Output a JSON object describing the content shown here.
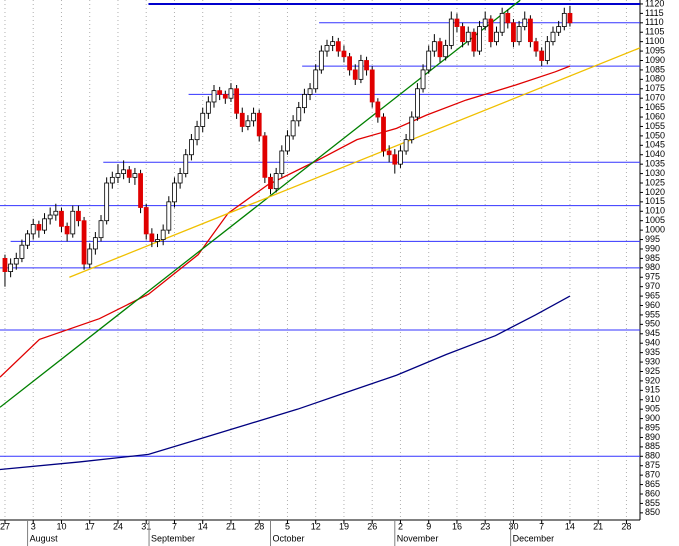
{
  "chart_data": {
    "type": "candlestick",
    "xlim": [
      -0.88,
      112.4
    ],
    "ylim": [
      846.2,
      1122.1
    ],
    "yticks": [
      1120,
      1115,
      1110,
      1105,
      1100,
      1095,
      1090,
      1085,
      1080,
      1075,
      1070,
      1065,
      1060,
      1055,
      1050,
      1045,
      1040,
      1035,
      1030,
      1025,
      1020,
      1015,
      1010,
      1005,
      1000,
      995,
      990,
      985,
      980,
      975,
      970,
      965,
      960,
      955,
      950,
      945,
      940,
      935,
      930,
      925,
      920,
      915,
      910,
      905,
      900,
      895,
      890,
      885,
      880,
      875,
      870,
      865,
      860,
      855,
      850
    ],
    "xticks": [
      {
        "value": 0,
        "label": "27"
      },
      {
        "value": 5,
        "label": "3"
      },
      {
        "value": 10,
        "label": "10"
      },
      {
        "value": 15,
        "label": "17"
      },
      {
        "value": 20,
        "label": "24"
      },
      {
        "value": 25,
        "label": "31"
      },
      {
        "value": 30,
        "label": "7"
      },
      {
        "value": 35,
        "label": "14"
      },
      {
        "value": 40,
        "label": "21"
      },
      {
        "value": 45,
        "label": "28"
      },
      {
        "value": 50,
        "label": "5"
      },
      {
        "value": 55,
        "label": "12"
      },
      {
        "value": 60,
        "label": "19"
      },
      {
        "value": 65,
        "label": "26"
      },
      {
        "value": 70,
        "label": "2"
      },
      {
        "value": 75,
        "label": "9"
      },
      {
        "value": 80,
        "label": "16"
      },
      {
        "value": 85,
        "label": "23"
      },
      {
        "value": 90,
        "label": "30"
      },
      {
        "value": 95,
        "label": "7"
      },
      {
        "value": 100,
        "label": "14"
      },
      {
        "value": 105,
        "label": "21"
      },
      {
        "value": 110,
        "label": "28"
      }
    ],
    "months": [
      {
        "value": 4,
        "label": "August"
      },
      {
        "value": 25.5,
        "label": "September"
      },
      {
        "value": 47,
        "label": "October"
      },
      {
        "value": 69,
        "label": "November"
      },
      {
        "value": 89.5,
        "label": "December"
      }
    ],
    "up_color": "#ffffff",
    "down_color": "#e00000",
    "candles": [
      [
        985,
        987,
        970,
        978
      ],
      [
        978,
        985,
        975,
        982
      ],
      [
        982,
        988,
        979,
        985
      ],
      [
        985,
        995,
        983,
        992
      ],
      [
        992,
        1000,
        990,
        998
      ],
      [
        998,
        1006,
        995,
        1003
      ],
      [
        1003,
        1005,
        996,
        1000
      ],
      [
        1000,
        1009,
        998,
        1006
      ],
      [
        1006,
        1012,
        1003,
        1008
      ],
      [
        1008,
        1014,
        1005,
        1010
      ],
      [
        1010,
        1012,
        999,
        1002
      ],
      [
        1002,
        1004,
        994,
        998
      ],
      [
        998,
        1013,
        996,
        1010
      ],
      [
        1010,
        1013,
        1002,
        1005
      ],
      [
        1005,
        1007,
        979,
        982
      ],
      [
        982,
        993,
        980,
        990
      ],
      [
        990,
        999,
        987,
        996
      ],
      [
        996,
        1008,
        994,
        1005
      ],
      [
        1005,
        1028,
        1003,
        1025
      ],
      [
        1025,
        1031,
        1022,
        1028
      ],
      [
        1028,
        1035,
        1025,
        1030
      ],
      [
        1030,
        1037,
        1027,
        1032
      ],
      [
        1032,
        1034,
        1025,
        1028
      ],
      [
        1028,
        1033,
        1024,
        1030
      ],
      [
        1030,
        1032,
        1009,
        1012
      ],
      [
        1012,
        1014,
        995,
        998
      ],
      [
        998,
        1001,
        991,
        994
      ],
      [
        994,
        998,
        991,
        995
      ],
      [
        995,
        1003,
        992,
        1000
      ],
      [
        1000,
        1018,
        998,
        1015
      ],
      [
        1015,
        1028,
        1012,
        1025
      ],
      [
        1025,
        1033,
        1022,
        1030
      ],
      [
        1030,
        1043,
        1028,
        1040
      ],
      [
        1040,
        1051,
        1037,
        1048
      ],
      [
        1048,
        1058,
        1045,
        1055
      ],
      [
        1055,
        1065,
        1052,
        1062
      ],
      [
        1062,
        1071,
        1059,
        1068
      ],
      [
        1068,
        1077,
        1065,
        1074
      ],
      [
        1074,
        1076,
        1069,
        1072
      ],
      [
        1072,
        1074,
        1067,
        1070
      ],
      [
        1070,
        1078,
        1068,
        1075
      ],
      [
        1075,
        1077,
        1059,
        1062
      ],
      [
        1062,
        1065,
        1052,
        1055
      ],
      [
        1055,
        1061,
        1053,
        1058
      ],
      [
        1058,
        1065,
        1055,
        1062
      ],
      [
        1062,
        1064,
        1047,
        1050
      ],
      [
        1050,
        1052,
        1025,
        1028
      ],
      [
        1028,
        1030,
        1019,
        1022
      ],
      [
        1022,
        1033,
        1020,
        1030
      ],
      [
        1030,
        1045,
        1028,
        1042
      ],
      [
        1042,
        1053,
        1040,
        1050
      ],
      [
        1050,
        1061,
        1048,
        1058
      ],
      [
        1058,
        1068,
        1055,
        1065
      ],
      [
        1065,
        1075,
        1062,
        1072
      ],
      [
        1072,
        1078,
        1069,
        1075
      ],
      [
        1075,
        1088,
        1073,
        1085
      ],
      [
        1085,
        1098,
        1083,
        1095
      ],
      [
        1095,
        1101,
        1092,
        1098
      ],
      [
        1098,
        1103,
        1095,
        1100
      ],
      [
        1100,
        1102,
        1092,
        1095
      ],
      [
        1095,
        1098,
        1089,
        1092
      ],
      [
        1092,
        1094,
        1082,
        1085
      ],
      [
        1085,
        1088,
        1077,
        1080
      ],
      [
        1080,
        1093,
        1078,
        1090
      ],
      [
        1090,
        1092,
        1082,
        1085
      ],
      [
        1085,
        1087,
        1065,
        1068
      ],
      [
        1068,
        1070,
        1057,
        1060
      ],
      [
        1060,
        1062,
        1039,
        1042
      ],
      [
        1042,
        1045,
        1036,
        1040
      ],
      [
        1040,
        1043,
        1030,
        1035
      ],
      [
        1035,
        1045,
        1033,
        1042
      ],
      [
        1042,
        1051,
        1040,
        1048
      ],
      [
        1048,
        1063,
        1046,
        1060
      ],
      [
        1060,
        1078,
        1058,
        1075
      ],
      [
        1075,
        1088,
        1073,
        1085
      ],
      [
        1085,
        1098,
        1083,
        1095
      ],
      [
        1095,
        1104,
        1092,
        1100
      ],
      [
        1100,
        1102,
        1089,
        1092
      ],
      [
        1092,
        1101,
        1090,
        1098
      ],
      [
        1098,
        1116,
        1096,
        1112
      ],
      [
        1112,
        1115,
        1105,
        1108
      ],
      [
        1108,
        1110,
        1097,
        1100
      ],
      [
        1100,
        1108,
        1098,
        1105
      ],
      [
        1105,
        1107,
        1092,
        1095
      ],
      [
        1095,
        1111,
        1093,
        1108
      ],
      [
        1108,
        1116,
        1106,
        1112
      ],
      [
        1112,
        1114,
        1097,
        1100
      ],
      [
        1100,
        1108,
        1098,
        1105
      ],
      [
        1105,
        1118,
        1103,
        1115
      ],
      [
        1115,
        1117,
        1107,
        1110
      ],
      [
        1110,
        1112,
        1097,
        1100
      ],
      [
        1100,
        1111,
        1098,
        1108
      ],
      [
        1108,
        1116,
        1106,
        1112
      ],
      [
        1112,
        1114,
        1097,
        1100
      ],
      [
        1100,
        1102,
        1092,
        1095
      ],
      [
        1095,
        1097,
        1087,
        1090
      ],
      [
        1090,
        1103,
        1088,
        1100
      ],
      [
        1100,
        1108,
        1098,
        1105
      ],
      [
        1105,
        1111,
        1103,
        1108
      ],
      [
        1108,
        1118,
        1106,
        1115
      ],
      [
        1115,
        1119,
        1108,
        1110
      ]
    ],
    "hlines": [
      {
        "y": 1120,
        "x": [
          25.4,
          112.4
        ],
        "color": "#0000cc",
        "width": 2
      },
      {
        "y": 1110,
        "x": [
          55.6,
          112.4
        ],
        "color": "#3333ff",
        "width": 1
      },
      {
        "y": 1087,
        "x": [
          52.6,
          112.4
        ],
        "color": "#3333ff",
        "width": 1
      },
      {
        "y": 1072,
        "x": [
          32.5,
          112.4
        ],
        "color": "#3333ff",
        "width": 1
      },
      {
        "y": 1036,
        "x": [
          17.4,
          112.4
        ],
        "color": "#3333ff",
        "width": 1
      },
      {
        "y": 1013,
        "x": [
          -0.88,
          112.4
        ],
        "color": "#3333ff",
        "width": 1
      },
      {
        "y": 994,
        "x": [
          1,
          112.4
        ],
        "color": "#3333ff",
        "width": 1
      },
      {
        "y": 980,
        "x": [
          -0.88,
          112.4
        ],
        "color": "#3333ff",
        "width": 1
      },
      {
        "y": 947,
        "x": [
          -0.88,
          112.4
        ],
        "color": "#3333ff",
        "width": 1
      },
      {
        "y": 880,
        "x": [
          -0.88,
          112.4
        ],
        "color": "#3333ff",
        "width": 1
      }
    ],
    "lines": [
      {
        "color": "#e00000",
        "x": [
          -0.88,
          6.1,
          16.7,
          25.4,
          34.2,
          39.5,
          46.5,
          55.3,
          62.3,
          69.3,
          74.6,
          81.6,
          90.4,
          97.4,
          100
        ],
        "values": [
          922,
          942,
          953,
          966,
          987,
          1009,
          1024,
          1037,
          1048,
          1054,
          1061,
          1069,
          1077,
          1084,
          1087
        ]
      },
      {
        "color": "#000080",
        "x": [
          -0.88,
          13.2,
          25.4,
          34.2,
          43,
          51.8,
          60.5,
          69.3,
          78.1,
          86.8,
          93.9,
          100
        ],
        "values": [
          873,
          877,
          881,
          889,
          897,
          905,
          914,
          923,
          934,
          944,
          955,
          965
        ]
      },
      {
        "color": "#008000",
        "x": [
          -0.88,
          91.2
        ],
        "values": [
          906,
          1122
        ]
      },
      {
        "color": "#f0c000",
        "x": [
          11.4,
          112.4
        ],
        "values": [
          975,
          1096.7
        ]
      }
    ]
  }
}
